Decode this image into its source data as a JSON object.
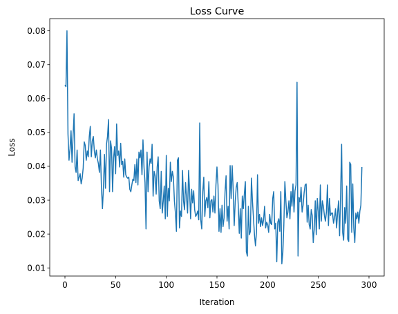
{
  "chart_data": {
    "type": "line",
    "title": "Loss Curve",
    "xlabel": "Iteration",
    "ylabel": "Loss",
    "xlim": [
      -15,
      315
    ],
    "ylim": [
      0.0076,
      0.0836
    ],
    "xticks": [
      0,
      50,
      100,
      150,
      200,
      250,
      300
    ],
    "yticks": [
      0.01,
      0.02,
      0.03,
      0.04,
      0.05,
      0.06,
      0.07,
      0.08
    ],
    "xtick_labels": [
      "0",
      "50",
      "100",
      "150",
      "200",
      "250",
      "300"
    ],
    "ytick_labels": [
      "0.01",
      "0.02",
      "0.03",
      "0.04",
      "0.05",
      "0.06",
      "0.07",
      "0.08"
    ],
    "grid": false,
    "series": [
      {
        "color": "#1f77b4",
        "values": [
          0.064,
          0.0635,
          0.08,
          0.0495,
          0.0418,
          0.0452,
          0.0505,
          0.0412,
          0.0488,
          0.0555,
          0.0398,
          0.0382,
          0.0448,
          0.0358,
          0.0368,
          0.0378,
          0.0348,
          0.0365,
          0.0395,
          0.0472,
          0.0462,
          0.0418,
          0.0445,
          0.0428,
          0.0488,
          0.0518,
          0.0428,
          0.0475,
          0.0488,
          0.0445,
          0.0425,
          0.0448,
          0.0422,
          0.0408,
          0.0382,
          0.0448,
          0.0338,
          0.0275,
          0.0338,
          0.0435,
          0.0335,
          0.0465,
          0.0488,
          0.0538,
          0.0325,
          0.0475,
          0.0452,
          0.0325,
          0.0425,
          0.0458,
          0.0378,
          0.0525,
          0.0432,
          0.0445,
          0.0398,
          0.0468,
          0.0405,
          0.0415,
          0.0368,
          0.0422,
          0.0375,
          0.0368,
          0.0365,
          0.0368,
          0.0332,
          0.0325,
          0.0345,
          0.0362,
          0.0358,
          0.0405,
          0.0352,
          0.0422,
          0.0345,
          0.0442,
          0.0425,
          0.0448,
          0.0375,
          0.0478,
          0.0398,
          0.0352,
          0.0215,
          0.0442,
          0.0325,
          0.0398,
          0.0422,
          0.0408,
          0.0465,
          0.0312,
          0.0385,
          0.0372,
          0.0318,
          0.0398,
          0.0428,
          0.0298,
          0.0275,
          0.0385,
          0.0262,
          0.0298,
          0.0342,
          0.0245,
          0.0432,
          0.0252,
          0.0335,
          0.0298,
          0.0412,
          0.0355,
          0.0385,
          0.0368,
          0.0298,
          0.0262,
          0.0208,
          0.0418,
          0.0425,
          0.0218,
          0.0268,
          0.0252,
          0.0388,
          0.0298,
          0.0272,
          0.0352,
          0.0308,
          0.0262,
          0.0388,
          0.0325,
          0.0245,
          0.0332,
          0.0292,
          0.0328,
          0.0272,
          0.0252,
          0.0258,
          0.0268,
          0.0242,
          0.0528,
          0.0242,
          0.0215,
          0.0325,
          0.0368,
          0.0252,
          0.0298,
          0.0308,
          0.0278,
          0.0355,
          0.0248,
          0.0298,
          0.0302,
          0.0265,
          0.0312,
          0.0262,
          0.0345,
          0.0398,
          0.0345,
          0.0208,
          0.0275,
          0.0205,
          0.0285,
          0.0222,
          0.0248,
          0.0325,
          0.0372,
          0.0238,
          0.0282,
          0.0215,
          0.0402,
          0.0305,
          0.0402,
          0.0332,
          0.0225,
          0.0295,
          0.0338,
          0.0352,
          0.0285,
          0.0202,
          0.0275,
          0.0188,
          0.0312,
          0.0275,
          0.0318,
          0.0355,
          0.0148,
          0.0135,
          0.0282,
          0.0198,
          0.0208,
          0.0365,
          0.0298,
          0.0248,
          0.0198,
          0.0165,
          0.0205,
          0.0375,
          0.0232,
          0.0258,
          0.0222,
          0.0248,
          0.0225,
          0.0242,
          0.0282,
          0.0218,
          0.0235,
          0.0228,
          0.0205,
          0.0258,
          0.0232,
          0.0228,
          0.0305,
          0.0325,
          0.0215,
          0.0232,
          0.0118,
          0.0235,
          0.0245,
          0.0208,
          0.0325,
          0.0112,
          0.0145,
          0.0228,
          0.0355,
          0.0298,
          0.0248,
          0.0265,
          0.0298,
          0.0245,
          0.0325,
          0.0282,
          0.0348,
          0.0265,
          0.0328,
          0.0345,
          0.0648,
          0.0135,
          0.0308,
          0.0295,
          0.0338,
          0.0265,
          0.0285,
          0.0322,
          0.0345,
          0.0348,
          0.0235,
          0.0285,
          0.0228,
          0.0215,
          0.0272,
          0.0255,
          0.0175,
          0.0215,
          0.0298,
          0.0198,
          0.0305,
          0.0268,
          0.0215,
          0.0345,
          0.0238,
          0.0298,
          0.0282,
          0.0255,
          0.0238,
          0.0265,
          0.0345,
          0.0225,
          0.0305,
          0.0255,
          0.0262,
          0.0262,
          0.0232,
          0.0248,
          0.0275,
          0.0218,
          0.0262,
          0.0298,
          0.0195,
          0.0318,
          0.0465,
          0.0205,
          0.0182,
          0.0278,
          0.0232,
          0.0342,
          0.0185,
          0.0178,
          0.0412,
          0.0405,
          0.0205,
          0.0348,
          0.0218,
          0.0175,
          0.0262,
          0.0245,
          0.0265,
          0.0232,
          0.0268,
          0.0285,
          0.0398
        ]
      }
    ]
  }
}
